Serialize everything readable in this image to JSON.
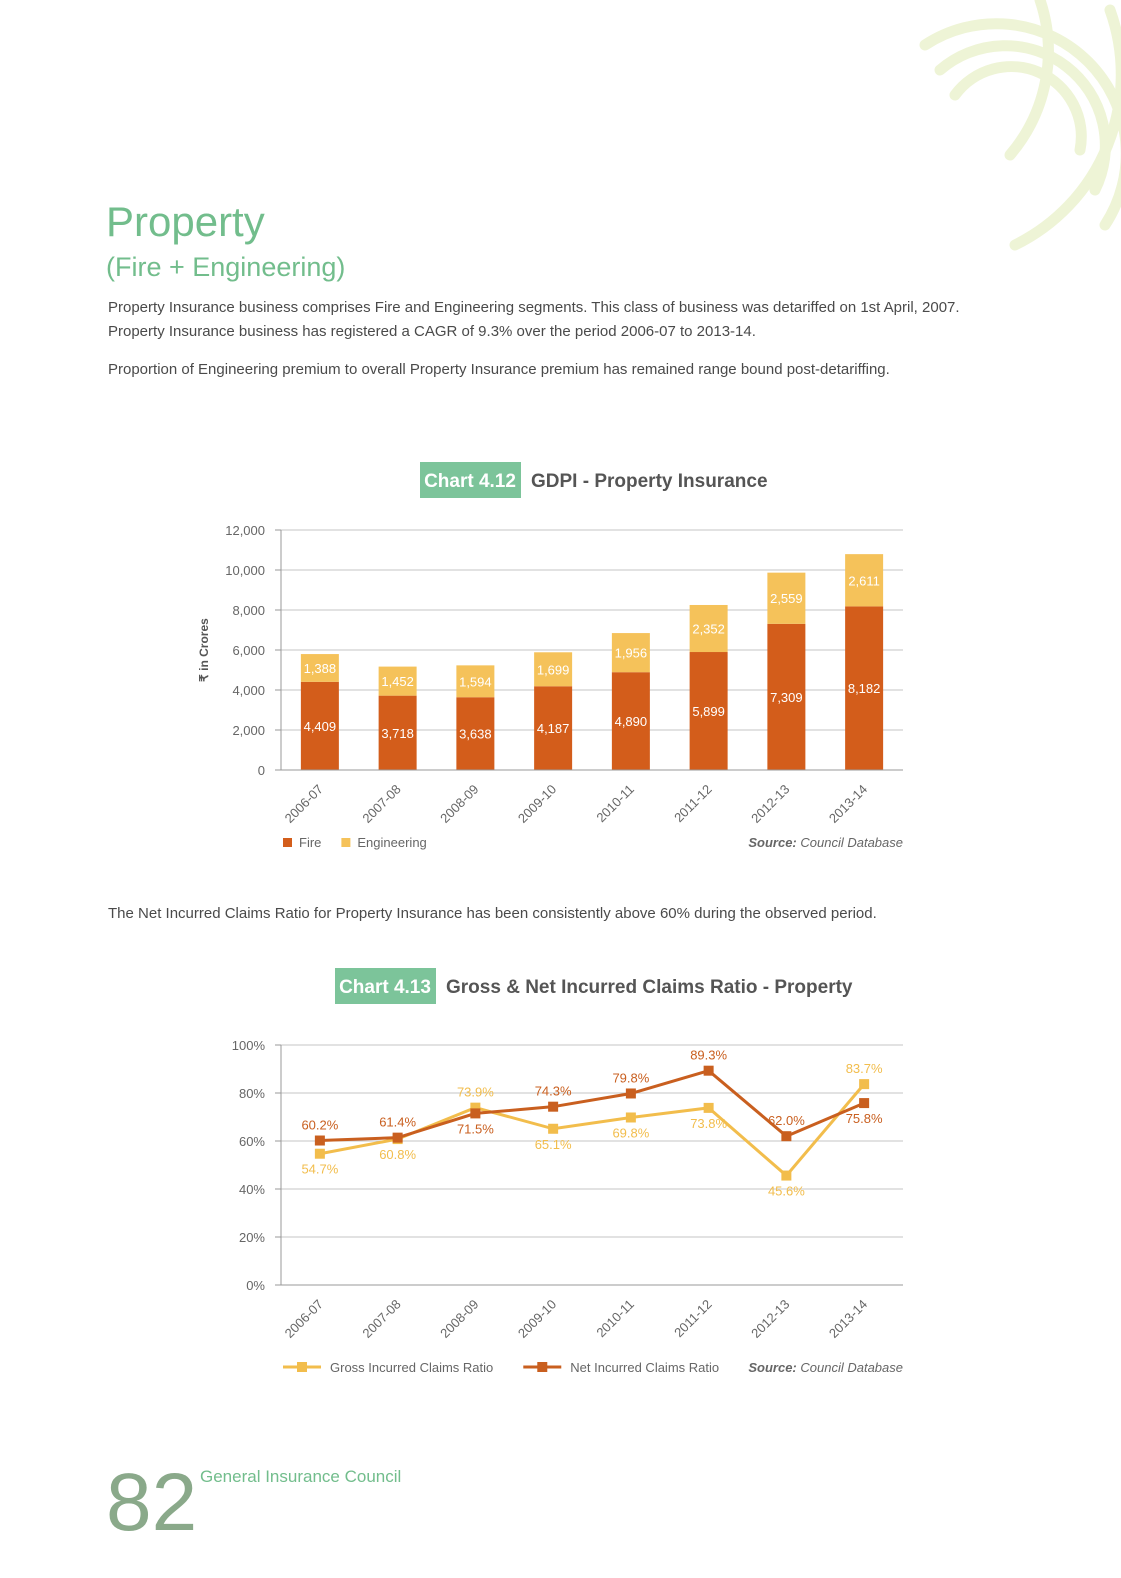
{
  "header": {
    "title": "Property",
    "subtitle": "(Fire + Engineering)"
  },
  "paragraphs": [
    "Property Insurance business comprises Fire and Engineering segments. This class of business was detariffed on 1st April, 2007.",
    "Property Insurance business has registered a CAGR of 9.3% over the period 2006-07 to 2013-14.",
    "Proportion of Engineering premium to overall Property Insurance premium has remained range bound post-detariffing.",
    "The Net Incurred Claims Ratio for Property Insurance has been consistently above 60% during the observed period."
  ],
  "chart_data": [
    {
      "type": "bar",
      "stacked": true,
      "chart_number": "Chart 4.12",
      "title": "GDPI - Property Insurance",
      "y_label": "₹ in Crores",
      "categories": [
        "2006-07",
        "2007-08",
        "2008-09",
        "2009-10",
        "2010-11",
        "2011-12",
        "2012-13",
        "2013-14"
      ],
      "series": [
        {
          "name": "Fire",
          "color": "#d35d1b",
          "values": [
            4409,
            3718,
            3638,
            4187,
            4890,
            5899,
            7309,
            8182
          ],
          "value_labels": [
            "4,409",
            "3,718",
            "3,638",
            "4,187",
            "4,890",
            "5,899",
            "7,309",
            "8,182"
          ]
        },
        {
          "name": "Engineering",
          "color": "#f5c25a",
          "values": [
            1388,
            1452,
            1594,
            1699,
            1956,
            2352,
            2559,
            2611
          ],
          "value_labels": [
            "1,388",
            "1,452",
            "1,594",
            "1,699",
            "1,956",
            "2,352",
            "2,559",
            "2,611"
          ]
        }
      ],
      "ylim": [
        0,
        12000
      ],
      "yticks": [
        0,
        {
          "value": 2000,
          "label": "2,000"
        },
        {
          "value": 4000,
          "label": "4,000"
        },
        {
          "value": 6000,
          "label": "6,000"
        },
        {
          "value": 8000,
          "label": "8,000"
        },
        {
          "value": 10000,
          "label": "10,000"
        },
        {
          "value": 12000,
          "label": "12,000"
        }
      ],
      "grid": true,
      "legend": "bottom-left",
      "source_label": "Source:",
      "source": " Council Database"
    },
    {
      "type": "line",
      "chart_number": "Chart 4.13",
      "title": "Gross & Net Incurred Claims Ratio - Property",
      "categories": [
        "2006-07",
        "2007-08",
        "2008-09",
        "2009-10",
        "2010-11",
        "2011-12",
        "2012-13",
        "2013-14"
      ],
      "series": [
        {
          "name": "Gross Incurred Claims Ratio",
          "color": "#f2bd4c",
          "values": [
            54.7,
            60.8,
            73.9,
            65.1,
            69.8,
            73.8,
            45.6,
            83.7
          ],
          "value_labels": [
            "54.7%",
            "60.8%",
            "73.9%",
            "65.1%",
            "69.8%",
            "73.8%",
            "45.6%",
            "83.7%"
          ]
        },
        {
          "name": "Net Incurred Claims Ratio",
          "color": "#c95f1f",
          "values": [
            60.2,
            61.4,
            71.5,
            74.3,
            79.8,
            89.3,
            62.0,
            75.8
          ],
          "value_labels": [
            "60.2%",
            "61.4%",
            "71.5%",
            "74.3%",
            "79.8%",
            "89.3%",
            "62.0%",
            "75.8%"
          ]
        }
      ],
      "ylim": [
        0,
        100
      ],
      "yticks": [
        {
          "value": 0,
          "label": "0%"
        },
        {
          "value": 20,
          "label": "20%"
        },
        {
          "value": 40,
          "label": "40%"
        },
        {
          "value": 60,
          "label": "60%"
        },
        {
          "value": 80,
          "label": "80%"
        },
        {
          "value": 100,
          "label": "100%"
        }
      ],
      "grid": true,
      "legend": "bottom-left",
      "source_label": "Source:",
      "source": " Council Database"
    }
  ],
  "footer": {
    "page_number": "82",
    "publisher": "General Insurance Council"
  }
}
